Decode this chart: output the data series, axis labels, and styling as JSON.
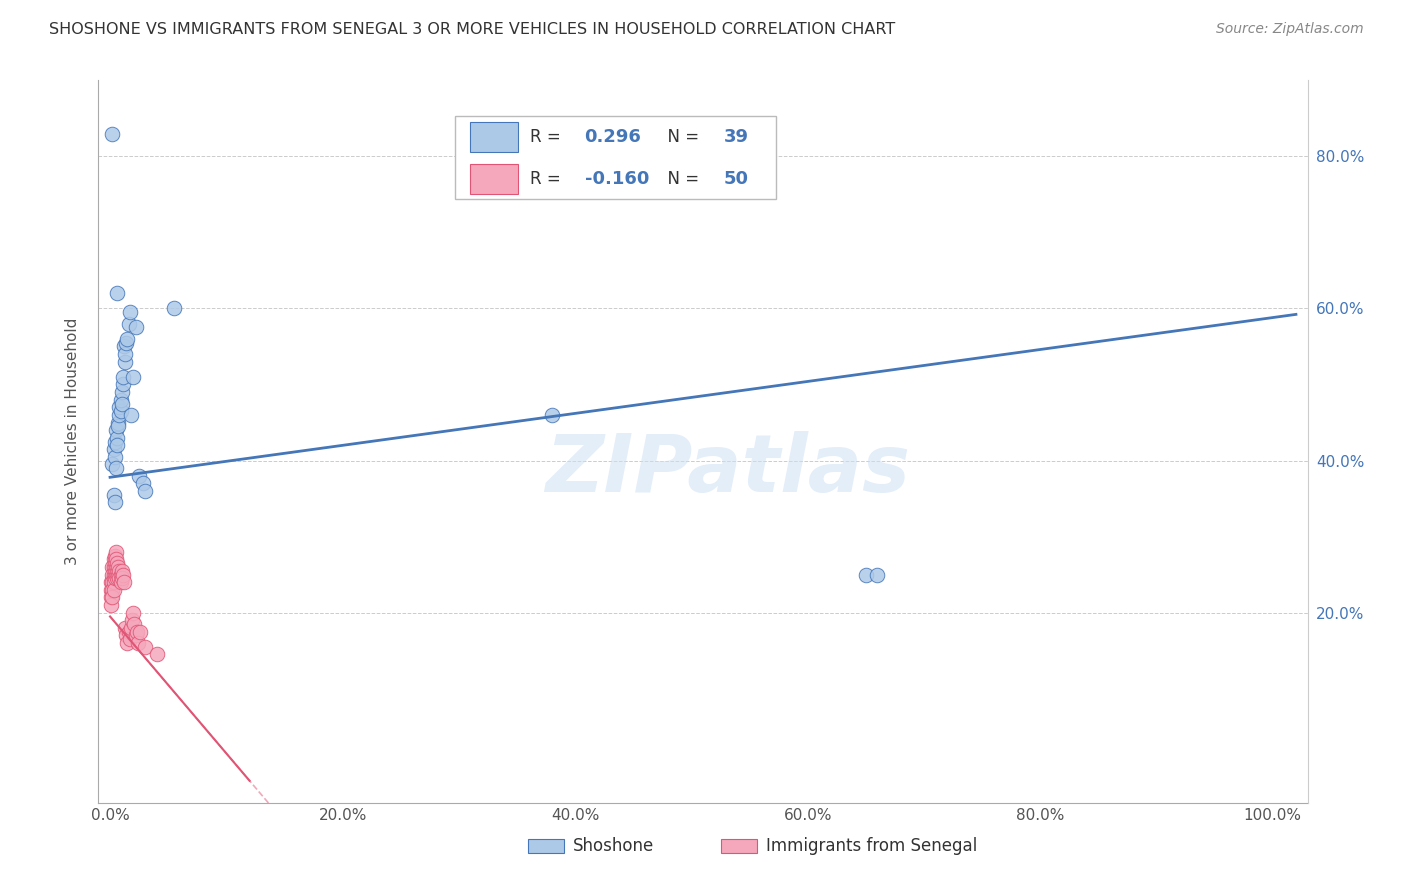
{
  "title": "SHOSHONE VS IMMIGRANTS FROM SENEGAL 3 OR MORE VEHICLES IN HOUSEHOLD CORRELATION CHART",
  "source": "Source: ZipAtlas.com",
  "ylabel": "3 or more Vehicles in Household",
  "x_tick_labels": [
    "0.0%",
    "20.0%",
    "40.0%",
    "60.0%",
    "80.0%",
    "100.0%"
  ],
  "x_tick_vals": [
    0.0,
    0.2,
    0.4,
    0.6,
    0.8,
    1.0
  ],
  "y_tick_vals": [
    0.2,
    0.4,
    0.6,
    0.8
  ],
  "y_tick_labels_right": [
    "20.0%",
    "40.0%",
    "60.0%",
    "80.0%"
  ],
  "xlim": [
    -0.01,
    1.03
  ],
  "ylim": [
    -0.05,
    0.9
  ],
  "legend_labels": [
    "Shoshone",
    "Immigrants from Senegal"
  ],
  "R_shoshone": "0.296",
  "N_shoshone": "39",
  "R_senegal": "-0.160",
  "N_senegal": "50",
  "shoshone_color": "#adc9e8",
  "senegal_color": "#f5a8bc",
  "line_shoshone_color": "#4476b8",
  "line_senegal_color": "#e05575",
  "watermark_text": "ZIPatlas",
  "shoshone_x": [
    0.002,
    0.003,
    0.004,
    0.004,
    0.005,
    0.005,
    0.006,
    0.006,
    0.007,
    0.007,
    0.008,
    0.008,
    0.009,
    0.009,
    0.01,
    0.01,
    0.011,
    0.011,
    0.012,
    0.013,
    0.013,
    0.014,
    0.015,
    0.016,
    0.017,
    0.018,
    0.02,
    0.022,
    0.025,
    0.028,
    0.03,
    0.055,
    0.38,
    0.65,
    0.66,
    0.003,
    0.004,
    0.006,
    0.002
  ],
  "shoshone_y": [
    0.395,
    0.415,
    0.405,
    0.425,
    0.39,
    0.44,
    0.43,
    0.42,
    0.45,
    0.445,
    0.46,
    0.47,
    0.465,
    0.48,
    0.49,
    0.475,
    0.5,
    0.51,
    0.55,
    0.53,
    0.54,
    0.555,
    0.56,
    0.58,
    0.595,
    0.46,
    0.51,
    0.575,
    0.38,
    0.37,
    0.36,
    0.6,
    0.46,
    0.25,
    0.25,
    0.355,
    0.345,
    0.62,
    0.83
  ],
  "senegal_x": [
    0.001,
    0.001,
    0.001,
    0.001,
    0.002,
    0.002,
    0.002,
    0.002,
    0.002,
    0.003,
    0.003,
    0.003,
    0.003,
    0.003,
    0.004,
    0.004,
    0.004,
    0.004,
    0.005,
    0.005,
    0.005,
    0.005,
    0.006,
    0.006,
    0.006,
    0.007,
    0.007,
    0.008,
    0.008,
    0.009,
    0.009,
    0.01,
    0.01,
    0.011,
    0.012,
    0.013,
    0.014,
    0.015,
    0.016,
    0.017,
    0.018,
    0.019,
    0.02,
    0.021,
    0.022,
    0.023,
    0.024,
    0.026,
    0.03,
    0.04
  ],
  "senegal_y": [
    0.24,
    0.23,
    0.22,
    0.21,
    0.26,
    0.25,
    0.24,
    0.23,
    0.22,
    0.27,
    0.26,
    0.25,
    0.24,
    0.23,
    0.275,
    0.265,
    0.255,
    0.245,
    0.28,
    0.27,
    0.26,
    0.25,
    0.265,
    0.255,
    0.245,
    0.26,
    0.25,
    0.255,
    0.245,
    0.25,
    0.24,
    0.255,
    0.245,
    0.25,
    0.24,
    0.18,
    0.17,
    0.16,
    0.175,
    0.165,
    0.18,
    0.19,
    0.2,
    0.185,
    0.17,
    0.175,
    0.16,
    0.175,
    0.155,
    0.145
  ]
}
